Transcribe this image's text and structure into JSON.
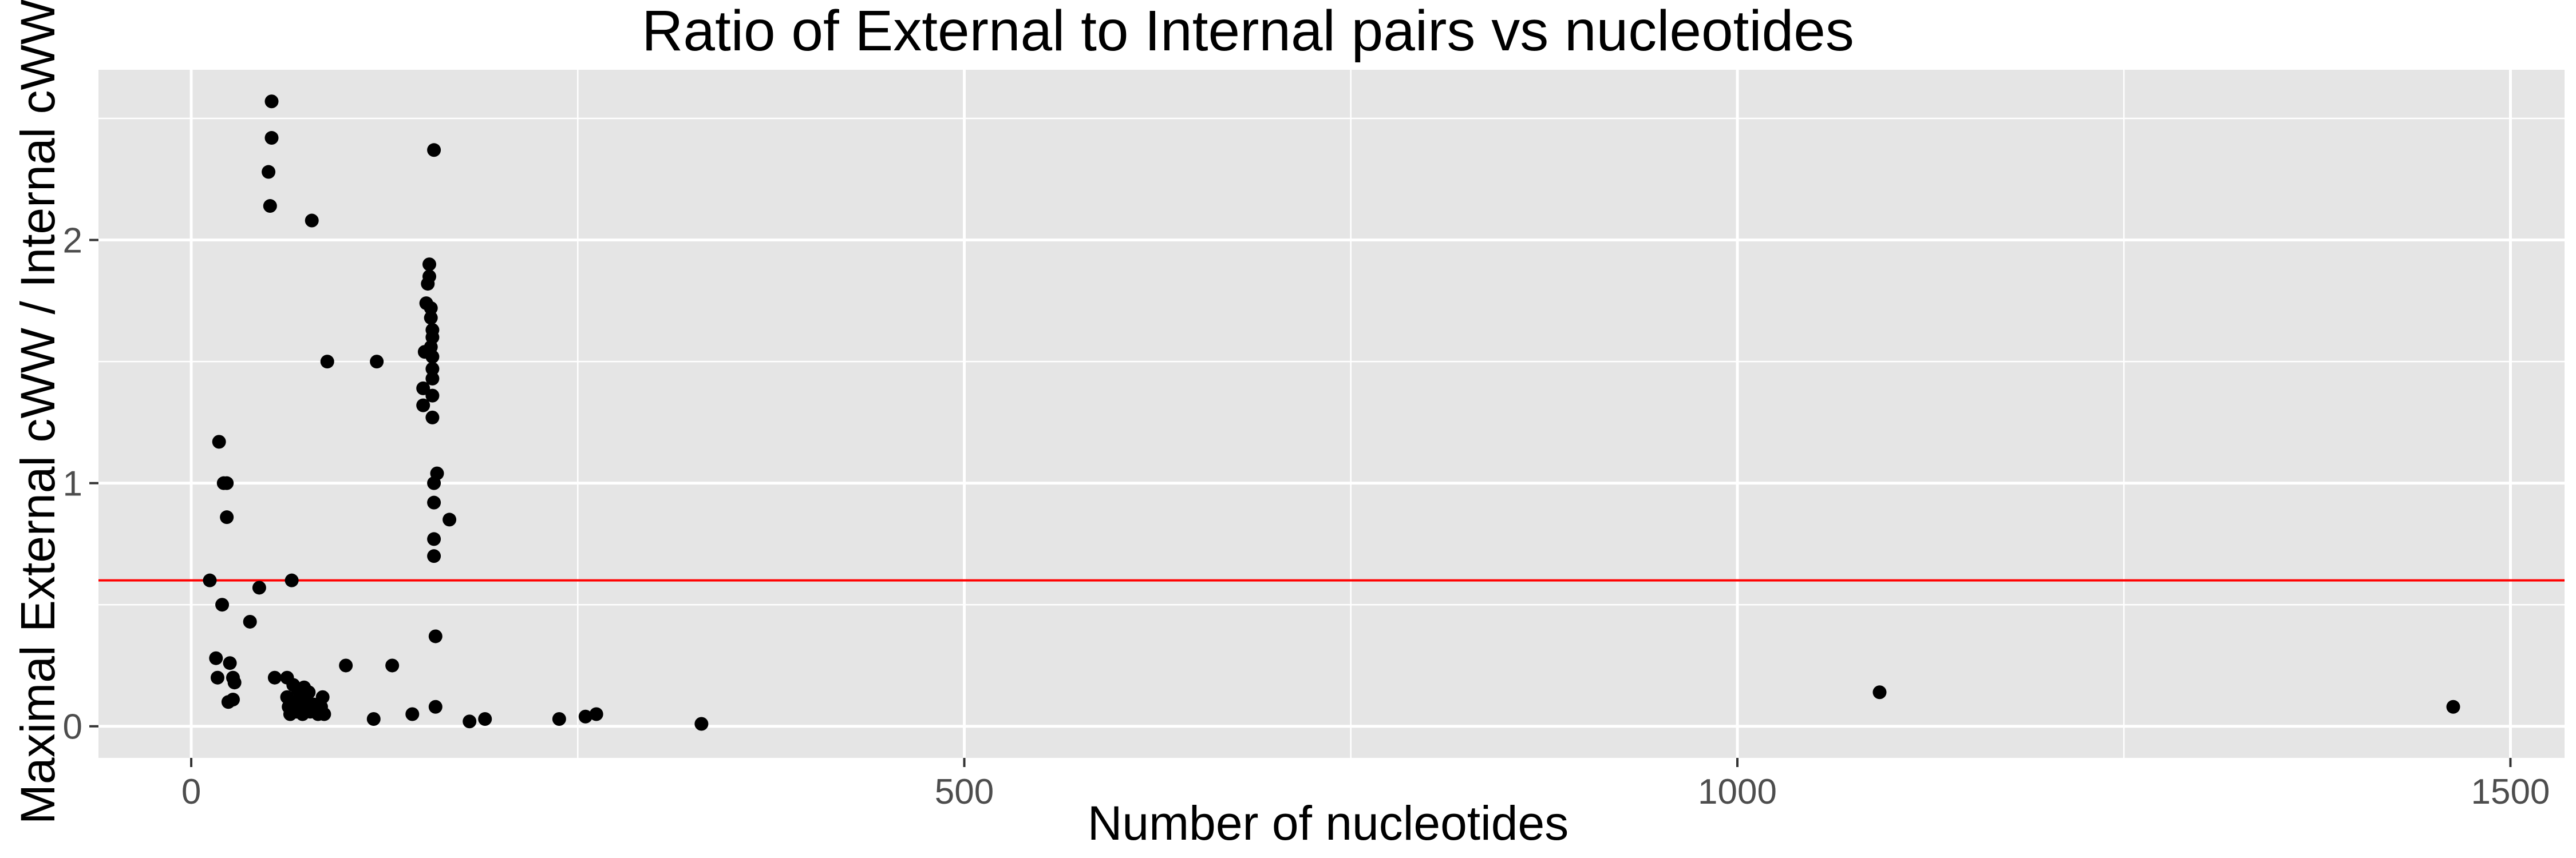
{
  "chart_data": {
    "type": "scatter",
    "title": "Ratio of External to Internal pairs vs nucleotides",
    "xlabel": "Number of nucleotides",
    "ylabel": "Maximal External cWW / Internal cWW",
    "xlim": [
      -60,
      1535
    ],
    "ylim": [
      -0.13,
      2.7
    ],
    "xticks": [
      0,
      500,
      1000,
      1500
    ],
    "yticks": [
      0,
      1,
      2
    ],
    "grid": true,
    "background_color": "#e5e5e5",
    "grid_color": "#ffffff",
    "point_color": "#000000",
    "reference_line": {
      "y": 0.6,
      "color": "#ff0000"
    },
    "points": [
      {
        "x": 12,
        "y": 0.6
      },
      {
        "x": 16,
        "y": 0.28
      },
      {
        "x": 17,
        "y": 0.2
      },
      {
        "x": 18,
        "y": 1.17
      },
      {
        "x": 20,
        "y": 0.5
      },
      {
        "x": 21,
        "y": 1.0
      },
      {
        "x": 23,
        "y": 1.0
      },
      {
        "x": 23,
        "y": 0.86
      },
      {
        "x": 24,
        "y": 0.1
      },
      {
        "x": 25,
        "y": 0.26
      },
      {
        "x": 27,
        "y": 0.11
      },
      {
        "x": 27,
        "y": 0.2
      },
      {
        "x": 28,
        "y": 0.18
      },
      {
        "x": 38,
        "y": 0.43
      },
      {
        "x": 44,
        "y": 0.57
      },
      {
        "x": 50,
        "y": 2.28
      },
      {
        "x": 51,
        "y": 2.14
      },
      {
        "x": 52,
        "y": 2.42
      },
      {
        "x": 52,
        "y": 2.57
      },
      {
        "x": 54,
        "y": 0.2
      },
      {
        "x": 62,
        "y": 0.2
      },
      {
        "x": 62,
        "y": 0.12
      },
      {
        "x": 63,
        "y": 0.08
      },
      {
        "x": 64,
        "y": 0.05
      },
      {
        "x": 65,
        "y": 0.6
      },
      {
        "x": 66,
        "y": 0.17
      },
      {
        "x": 67,
        "y": 0.1
      },
      {
        "x": 68,
        "y": 0.06
      },
      {
        "x": 69,
        "y": 0.15
      },
      {
        "x": 70,
        "y": 0.08
      },
      {
        "x": 71,
        "y": 0.12
      },
      {
        "x": 72,
        "y": 0.05
      },
      {
        "x": 73,
        "y": 0.16
      },
      {
        "x": 74,
        "y": 0.07
      },
      {
        "x": 75,
        "y": 0.1
      },
      {
        "x": 76,
        "y": 0.14
      },
      {
        "x": 77,
        "y": 0.06
      },
      {
        "x": 78,
        "y": 2.08
      },
      {
        "x": 79,
        "y": 0.09
      },
      {
        "x": 80,
        "y": 0.06
      },
      {
        "x": 82,
        "y": 0.05
      },
      {
        "x": 84,
        "y": 0.08
      },
      {
        "x": 85,
        "y": 0.12
      },
      {
        "x": 86,
        "y": 0.05
      },
      {
        "x": 88,
        "y": 1.5
      },
      {
        "x": 100,
        "y": 0.25
      },
      {
        "x": 118,
        "y": 0.03
      },
      {
        "x": 120,
        "y": 1.5
      },
      {
        "x": 130,
        "y": 0.25
      },
      {
        "x": 143,
        "y": 0.05
      },
      {
        "x": 150,
        "y": 1.39
      },
      {
        "x": 150,
        "y": 1.32
      },
      {
        "x": 151,
        "y": 1.54
      },
      {
        "x": 152,
        "y": 1.74
      },
      {
        "x": 153,
        "y": 1.82
      },
      {
        "x": 154,
        "y": 1.9
      },
      {
        "x": 154,
        "y": 1.85
      },
      {
        "x": 155,
        "y": 1.72
      },
      {
        "x": 155,
        "y": 1.68
      },
      {
        "x": 155,
        "y": 1.56
      },
      {
        "x": 156,
        "y": 1.63
      },
      {
        "x": 156,
        "y": 1.6
      },
      {
        "x": 156,
        "y": 1.52
      },
      {
        "x": 156,
        "y": 1.47
      },
      {
        "x": 156,
        "y": 1.43
      },
      {
        "x": 156,
        "y": 1.36
      },
      {
        "x": 156,
        "y": 1.27
      },
      {
        "x": 157,
        "y": 2.37
      },
      {
        "x": 157,
        "y": 1.0
      },
      {
        "x": 157,
        "y": 0.92
      },
      {
        "x": 157,
        "y": 0.77
      },
      {
        "x": 157,
        "y": 0.7
      },
      {
        "x": 158,
        "y": 0.37
      },
      {
        "x": 158,
        "y": 0.08
      },
      {
        "x": 159,
        "y": 1.04
      },
      {
        "x": 167,
        "y": 0.85
      },
      {
        "x": 180,
        "y": 0.02
      },
      {
        "x": 190,
        "y": 0.03
      },
      {
        "x": 238,
        "y": 0.03
      },
      {
        "x": 255,
        "y": 0.04
      },
      {
        "x": 262,
        "y": 0.05
      },
      {
        "x": 330,
        "y": 0.01
      },
      {
        "x": 1092,
        "y": 0.14
      },
      {
        "x": 1463,
        "y": 0.08
      }
    ]
  }
}
